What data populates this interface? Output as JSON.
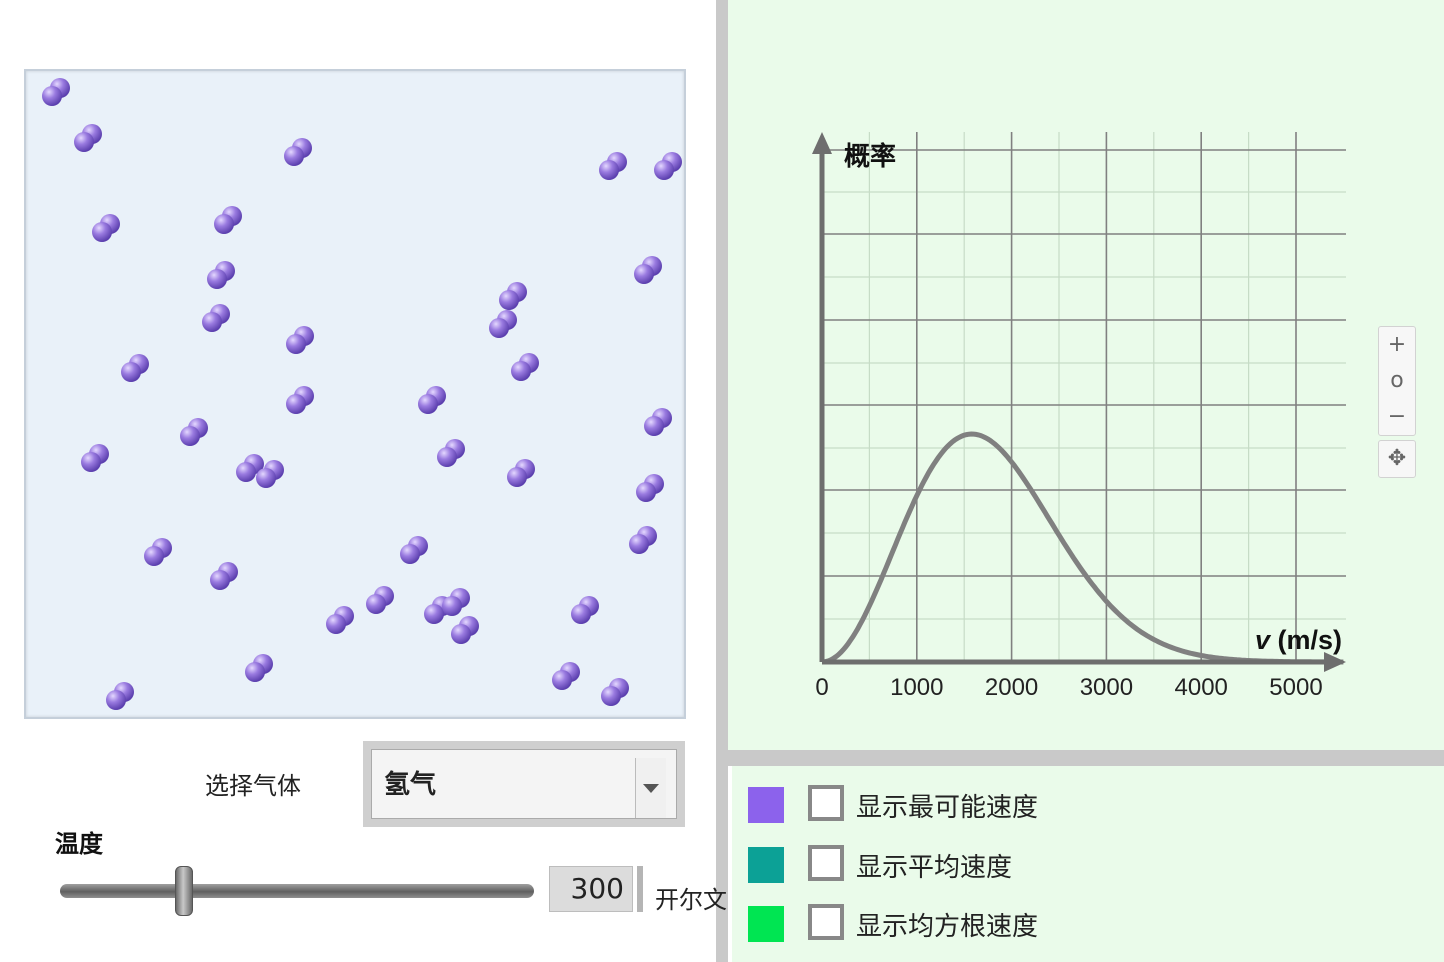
{
  "gas_selector": {
    "label": "选择气体",
    "selected": "氢气"
  },
  "temperature": {
    "label": "温度",
    "value": "300",
    "unit": "开尔文",
    "slider_fraction": 0.26
  },
  "chart_data": {
    "type": "line",
    "ylabel": "概率",
    "xlabel_var": "v",
    "xlabel_unit": " (m/s)",
    "xlim": [
      0,
      5500
    ],
    "x_ticks": [
      0,
      1000,
      2000,
      3000,
      4000,
      5000
    ],
    "gridlines": true,
    "series": [
      {
        "temperature_K": 300,
        "molar_mass_kg": 0.002,
        "peak_speed": 1580
      }
    ]
  },
  "zoom_controls": {
    "zoom_in": "+",
    "reset": "o",
    "zoom_out": "−",
    "pan": "✥"
  },
  "legend": [
    {
      "label": "显示最可能速度",
      "color": "#8c62ec",
      "checked": false
    },
    {
      "label": "显示平均速度",
      "color": "#0ca196",
      "checked": false
    },
    {
      "label": "显示均方根速度",
      "color": "#00e552",
      "checked": false
    }
  ],
  "colors": {
    "molecule": "#9a7be0",
    "curve": "#808080",
    "graph_bg": "#eafbea",
    "box_bg": "#e9f1f9"
  }
}
